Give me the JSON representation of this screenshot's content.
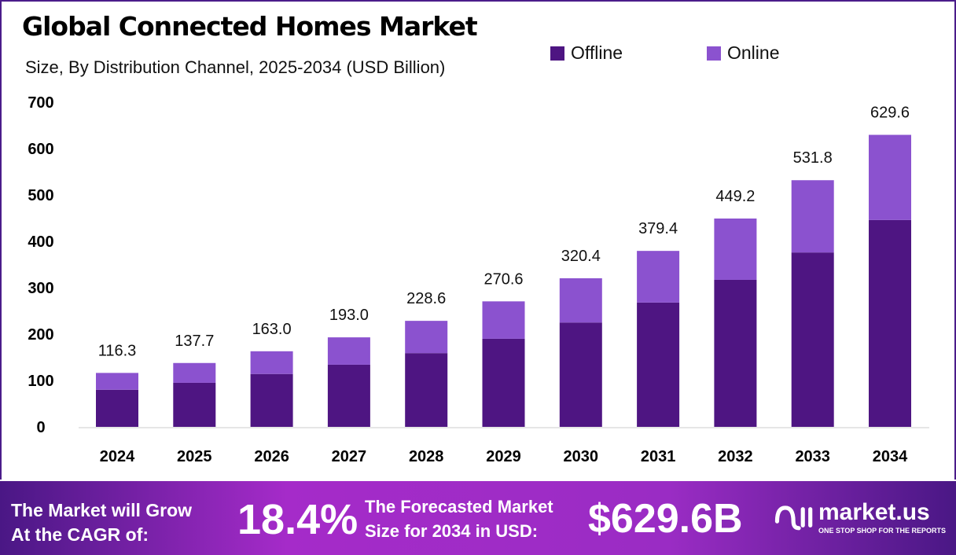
{
  "chart_data": {
    "type": "bar",
    "stacked": true,
    "title": "Global Connected Homes Market",
    "subtitle": "Size, By Distribution Channel, 2025-2034 (USD Billion)",
    "categories": [
      "2024",
      "2025",
      "2026",
      "2027",
      "2028",
      "2029",
      "2030",
      "2031",
      "2032",
      "2033",
      "2034"
    ],
    "series": [
      {
        "name": "Offline",
        "color": "#4e1582",
        "values": [
          80,
          95,
          114,
          134,
          159,
          190,
          225,
          268,
          317,
          376,
          446
        ]
      },
      {
        "name": "Online",
        "color": "#8b52cf",
        "values": [
          36.3,
          42.7,
          49,
          59,
          69.6,
          80.6,
          95.4,
          111.4,
          132.2,
          155.8,
          183.6
        ]
      }
    ],
    "totals": [
      "116.3",
      "137.7",
      "163.0",
      "193.0",
      "228.6",
      "270.6",
      "320.4",
      "379.4",
      "449.2",
      "531.8",
      "629.6"
    ],
    "yticks": [
      0,
      100,
      200,
      300,
      400,
      500,
      600,
      700
    ],
    "ylim": [
      0,
      700
    ],
    "grid": false,
    "legend": "top-right"
  },
  "footer": {
    "cagr_label_1": "The Market will Grow",
    "cagr_label_2": "At the CAGR of:",
    "cagr_value": "18.4%",
    "size_label_1": "The Forecasted Market",
    "size_label_2": "Size for 2034 in USD:",
    "size_value": "$629.6B",
    "logo_name": "market.us",
    "logo_tagline": "ONE STOP SHOP FOR THE REPORTS"
  }
}
